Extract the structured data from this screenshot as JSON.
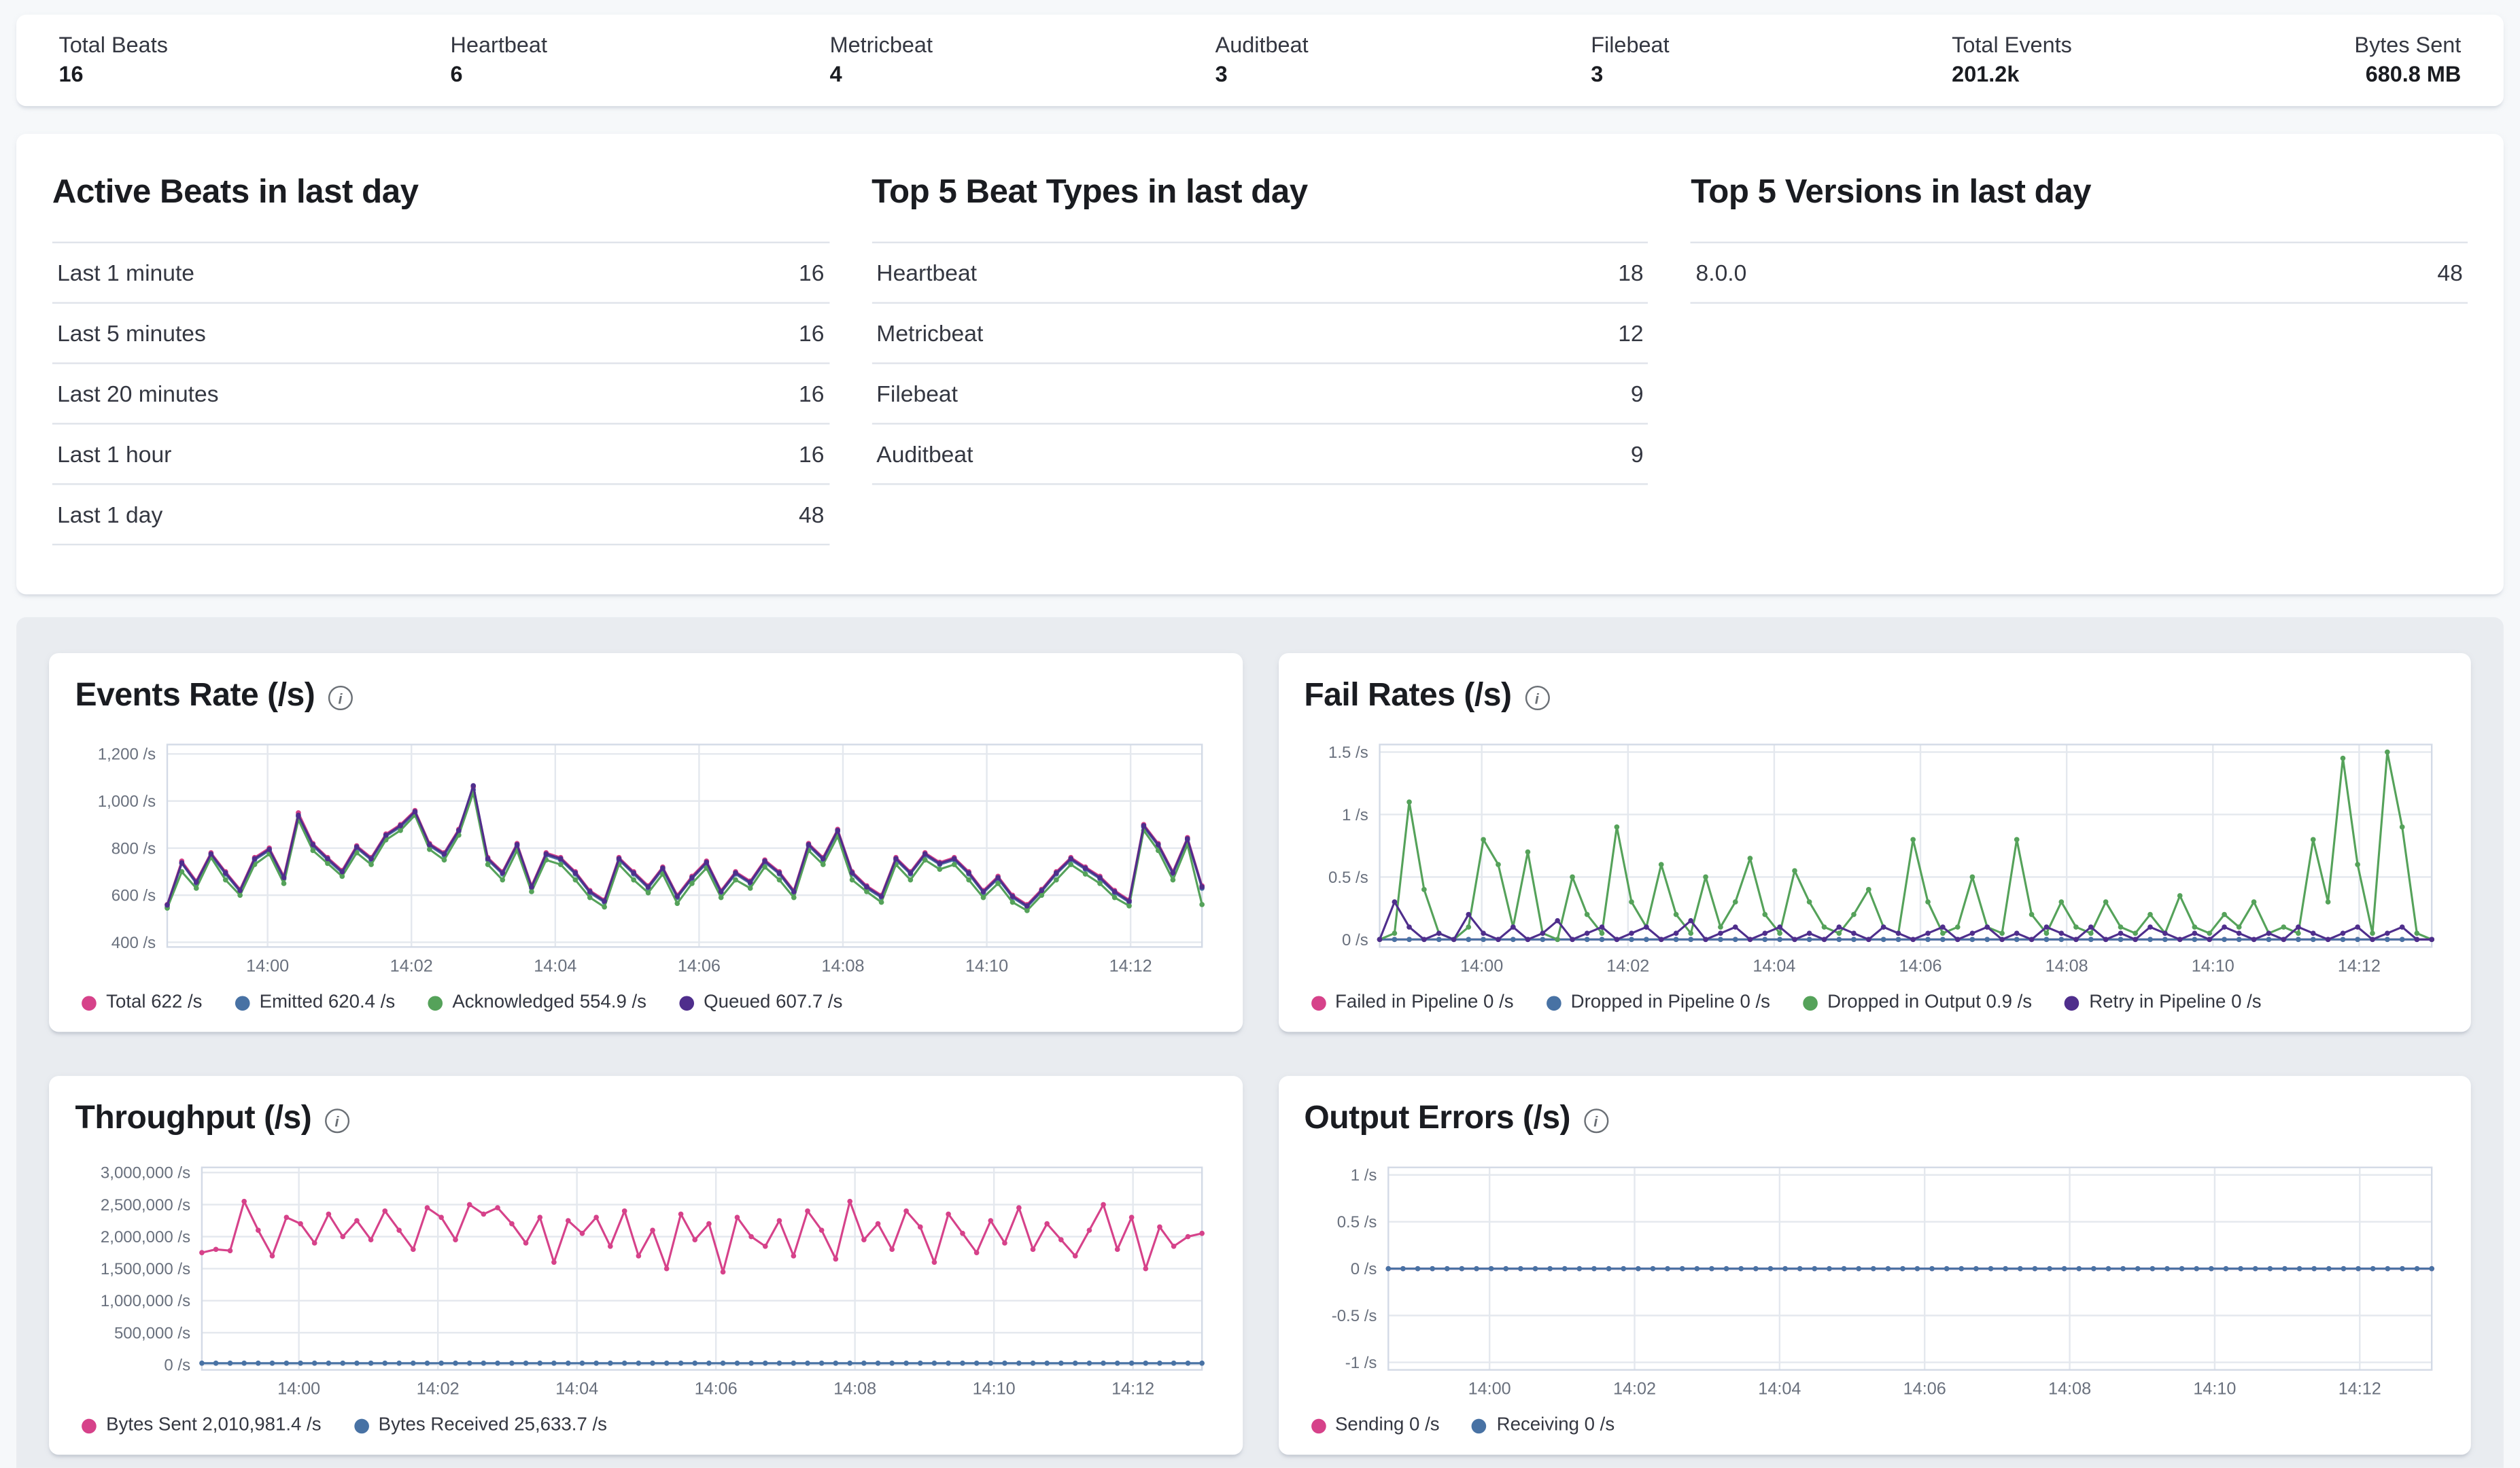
{
  "summary_bar": {
    "items": [
      {
        "label": "Total Beats",
        "value": "16"
      },
      {
        "label": "Heartbeat",
        "value": "6"
      },
      {
        "label": "Metricbeat",
        "value": "4"
      },
      {
        "label": "Auditbeat",
        "value": "3"
      },
      {
        "label": "Filebeat",
        "value": "3"
      },
      {
        "label": "Total Events",
        "value": "201.2k"
      },
      {
        "label": "Bytes Sent",
        "value": "680.8 MB"
      }
    ]
  },
  "tables": [
    {
      "title": "Active Beats in last day",
      "rows": [
        {
          "label": "Last 1 minute",
          "value": "16"
        },
        {
          "label": "Last 5 minutes",
          "value": "16"
        },
        {
          "label": "Last 20 minutes",
          "value": "16"
        },
        {
          "label": "Last 1 hour",
          "value": "16"
        },
        {
          "label": "Last 1 day",
          "value": "48"
        }
      ]
    },
    {
      "title": "Top 5 Beat Types in last day",
      "rows": [
        {
          "label": "Heartbeat",
          "value": "18"
        },
        {
          "label": "Metricbeat",
          "value": "12"
        },
        {
          "label": "Filebeat",
          "value": "9"
        },
        {
          "label": "Auditbeat",
          "value": "9"
        }
      ]
    },
    {
      "title": "Top 5 Versions in last day",
      "rows": [
        {
          "label": "8.0.0",
          "value": "48"
        }
      ]
    }
  ],
  "chart_data": [
    {
      "type": "line",
      "title": "Events Rate (/s)",
      "points": 72,
      "ylim": [
        380,
        1240
      ],
      "y_ticks": [
        {
          "value": 1200,
          "label": "1,200 /s"
        },
        {
          "value": 1000,
          "label": "1,000 /s"
        },
        {
          "value": 800,
          "label": "800 /s"
        },
        {
          "value": 600,
          "label": "600 /s"
        },
        {
          "value": 400,
          "label": "400 /s"
        }
      ],
      "x_ticks": [
        {
          "label": "14:00",
          "pos": 0.097
        },
        {
          "label": "14:02",
          "pos": 0.236
        },
        {
          "label": "14:04",
          "pos": 0.375
        },
        {
          "label": "14:06",
          "pos": 0.514
        },
        {
          "label": "14:08",
          "pos": 0.653
        },
        {
          "label": "14:10",
          "pos": 0.792
        },
        {
          "label": "14:12",
          "pos": 0.931
        }
      ],
      "series": [
        {
          "name": "Total 622 /s",
          "color": "#d6428a",
          "values": [
            560,
            745,
            660,
            780,
            700,
            625,
            760,
            800,
            680,
            950,
            820,
            760,
            705,
            810,
            760,
            860,
            900,
            960,
            820,
            780,
            880,
            1060,
            760,
            700,
            820,
            640,
            780,
            760,
            700,
            620,
            580,
            760,
            700,
            640,
            720,
            600,
            680,
            745,
            620,
            700,
            660,
            750,
            700,
            620,
            820,
            760,
            880,
            700,
            640,
            600,
            760,
            700,
            780,
            740,
            760,
            700,
            620,
            680,
            600,
            560,
            625,
            700,
            760,
            720,
            680,
            620,
            580,
            900,
            820,
            700,
            845,
            640
          ]
        },
        {
          "name": "Emitted 620.4 /s",
          "color": "#4872a4",
          "values": [
            550,
            735,
            650,
            770,
            690,
            615,
            750,
            790,
            670,
            935,
            810,
            750,
            695,
            800,
            750,
            850,
            890,
            950,
            810,
            770,
            870,
            1048,
            750,
            690,
            810,
            630,
            770,
            750,
            690,
            610,
            570,
            750,
            690,
            630,
            710,
            590,
            670,
            735,
            610,
            690,
            650,
            740,
            690,
            610,
            810,
            750,
            870,
            690,
            630,
            590,
            750,
            690,
            770,
            730,
            750,
            690,
            610,
            670,
            590,
            550,
            615,
            690,
            750,
            710,
            670,
            610,
            570,
            890,
            810,
            690,
            835,
            630
          ]
        },
        {
          "name": "Acknowledged 554.9 /s",
          "color": "#55a25a",
          "values": [
            545,
            700,
            630,
            760,
            665,
            600,
            730,
            775,
            650,
            920,
            790,
            735,
            680,
            780,
            730,
            835,
            875,
            940,
            795,
            750,
            855,
            1035,
            730,
            665,
            790,
            615,
            750,
            730,
            665,
            590,
            550,
            730,
            665,
            610,
            690,
            565,
            650,
            715,
            590,
            665,
            630,
            720,
            665,
            590,
            790,
            730,
            850,
            665,
            615,
            570,
            730,
            665,
            750,
            710,
            730,
            665,
            590,
            650,
            570,
            535,
            600,
            665,
            730,
            690,
            650,
            590,
            555,
            875,
            790,
            665,
            815,
            560
          ]
        },
        {
          "name": "Queued 607.7 /s",
          "color": "#4f2e8c",
          "values": [
            558,
            738,
            655,
            775,
            695,
            620,
            755,
            795,
            675,
            940,
            815,
            755,
            700,
            805,
            755,
            855,
            895,
            955,
            815,
            775,
            875,
            1065,
            755,
            695,
            815,
            635,
            775,
            755,
            695,
            615,
            575,
            755,
            695,
            635,
            715,
            595,
            675,
            740,
            615,
            695,
            655,
            745,
            695,
            615,
            815,
            755,
            875,
            695,
            635,
            595,
            755,
            695,
            775,
            735,
            755,
            695,
            615,
            675,
            595,
            555,
            620,
            695,
            755,
            715,
            675,
            615,
            575,
            895,
            815,
            695,
            840,
            635
          ]
        }
      ]
    },
    {
      "type": "line",
      "title": "Fail Rates (/s)",
      "points": 72,
      "ylim": [
        -0.06,
        1.56
      ],
      "y_ticks": [
        {
          "value": 1.5,
          "label": "1.5 /s"
        },
        {
          "value": 1,
          "label": "1 /s"
        },
        {
          "value": 0.5,
          "label": "0.5 /s"
        },
        {
          "value": 0,
          "label": "0 /s"
        }
      ],
      "x_ticks": [
        {
          "label": "14:00",
          "pos": 0.097
        },
        {
          "label": "14:02",
          "pos": 0.236
        },
        {
          "label": "14:04",
          "pos": 0.375
        },
        {
          "label": "14:06",
          "pos": 0.514
        },
        {
          "label": "14:08",
          "pos": 0.653
        },
        {
          "label": "14:10",
          "pos": 0.792
        },
        {
          "label": "14:12",
          "pos": 0.931
        }
      ],
      "series": [
        {
          "name": "Failed in Pipeline 0 /s",
          "color": "#d6428a",
          "constant": 0
        },
        {
          "name": "Dropped in Pipeline 0 /s",
          "color": "#4872a4",
          "constant": 0
        },
        {
          "name": "Dropped in Output 0.9 /s",
          "color": "#55a25a",
          "values": [
            0,
            0.05,
            1.1,
            0.4,
            0.05,
            0,
            0.1,
            0.8,
            0.6,
            0.1,
            0.7,
            0.05,
            0,
            0.5,
            0.2,
            0.05,
            0.9,
            0.3,
            0.1,
            0.6,
            0.2,
            0.05,
            0.5,
            0.1,
            0.3,
            0.65,
            0.2,
            0.05,
            0.55,
            0.3,
            0.1,
            0.05,
            0.2,
            0.4,
            0.1,
            0.05,
            0.8,
            0.3,
            0.05,
            0.1,
            0.5,
            0.1,
            0.05,
            0.8,
            0.2,
            0.05,
            0.3,
            0.1,
            0.05,
            0.3,
            0.1,
            0.05,
            0.2,
            0.05,
            0.35,
            0.1,
            0.05,
            0.2,
            0.1,
            0.3,
            0.05,
            0.1,
            0.05,
            0.8,
            0.3,
            1.45,
            0.6,
            0.05,
            1.5,
            0.9,
            0.05,
            0
          ]
        },
        {
          "name": "Retry in Pipeline 0 /s",
          "color": "#4f2e8c",
          "values": [
            0,
            0.3,
            0.1,
            0,
            0.05,
            0,
            0.2,
            0.05,
            0,
            0.1,
            0,
            0.05,
            0.15,
            0,
            0.05,
            0.1,
            0,
            0.05,
            0.1,
            0,
            0.05,
            0.15,
            0,
            0.05,
            0.1,
            0,
            0.05,
            0.1,
            0,
            0.05,
            0,
            0.1,
            0.05,
            0,
            0.1,
            0.05,
            0,
            0.05,
            0.1,
            0,
            0.05,
            0.1,
            0,
            0.05,
            0,
            0.1,
            0.05,
            0,
            0.1,
            0,
            0.05,
            0,
            0.1,
            0.05,
            0,
            0.05,
            0,
            0.1,
            0.05,
            0,
            0.05,
            0,
            0.1,
            0.05,
            0,
            0.05,
            0.1,
            0,
            0.05,
            0.1,
            0,
            0
          ]
        }
      ]
    },
    {
      "type": "line",
      "title": "Throughput (/s)",
      "points": 72,
      "ylim": [
        -80000,
        3080000
      ],
      "y_ticks": [
        {
          "value": 3000000,
          "label": "3,000,000 /s"
        },
        {
          "value": 2500000,
          "label": "2,500,000 /s"
        },
        {
          "value": 2000000,
          "label": "2,000,000 /s"
        },
        {
          "value": 1500000,
          "label": "1,500,000 /s"
        },
        {
          "value": 1000000,
          "label": "1,000,000 /s"
        },
        {
          "value": 500000,
          "label": "500,000 /s"
        },
        {
          "value": 0,
          "label": "0 /s"
        }
      ],
      "x_ticks": [
        {
          "label": "14:00",
          "pos": 0.097
        },
        {
          "label": "14:02",
          "pos": 0.236
        },
        {
          "label": "14:04",
          "pos": 0.375
        },
        {
          "label": "14:06",
          "pos": 0.514
        },
        {
          "label": "14:08",
          "pos": 0.653
        },
        {
          "label": "14:10",
          "pos": 0.792
        },
        {
          "label": "14:12",
          "pos": 0.931
        }
      ],
      "series": [
        {
          "name": "Bytes Sent 2,010,981.4 /s",
          "color": "#d6428a",
          "values": [
            1750000,
            1800000,
            1780000,
            2550000,
            2100000,
            1700000,
            2300000,
            2200000,
            1900000,
            2350000,
            2000000,
            2250000,
            1950000,
            2400000,
            2100000,
            1800000,
            2450000,
            2300000,
            1950000,
            2500000,
            2350000,
            2450000,
            2200000,
            1900000,
            2300000,
            1600000,
            2250000,
            2050000,
            2300000,
            1850000,
            2400000,
            1700000,
            2100000,
            1500000,
            2350000,
            1950000,
            2200000,
            1450000,
            2300000,
            2000000,
            1850000,
            2250000,
            1700000,
            2400000,
            2100000,
            1650000,
            2550000,
            1950000,
            2200000,
            1800000,
            2400000,
            2150000,
            1600000,
            2350000,
            2050000,
            1750000,
            2250000,
            1900000,
            2450000,
            1800000,
            2200000,
            1950000,
            1700000,
            2100000,
            2500000,
            1800000,
            2300000,
            1500000,
            2150000,
            1850000,
            2000000,
            2050000
          ]
        },
        {
          "name": "Bytes Received 25,633.7 /s",
          "color": "#4872a4",
          "constant": 25633.7
        }
      ]
    },
    {
      "type": "line",
      "title": "Output Errors (/s)",
      "points": 72,
      "ylim": [
        -1.08,
        1.08
      ],
      "y_ticks": [
        {
          "value": 1,
          "label": "1 /s"
        },
        {
          "value": 0.5,
          "label": "0.5 /s"
        },
        {
          "value": 0,
          "label": "0 /s"
        },
        {
          "value": -0.5,
          "label": "-0.5 /s"
        },
        {
          "value": -1,
          "label": "-1 /s"
        }
      ],
      "x_ticks": [
        {
          "label": "14:00",
          "pos": 0.097
        },
        {
          "label": "14:02",
          "pos": 0.236
        },
        {
          "label": "14:04",
          "pos": 0.375
        },
        {
          "label": "14:06",
          "pos": 0.514
        },
        {
          "label": "14:08",
          "pos": 0.653
        },
        {
          "label": "14:10",
          "pos": 0.792
        },
        {
          "label": "14:12",
          "pos": 0.931
        }
      ],
      "series": [
        {
          "name": "Sending 0 /s",
          "color": "#d6428a",
          "constant": 0
        },
        {
          "name": "Receiving 0 /s",
          "color": "#4872a4",
          "constant": 0
        }
      ]
    }
  ]
}
